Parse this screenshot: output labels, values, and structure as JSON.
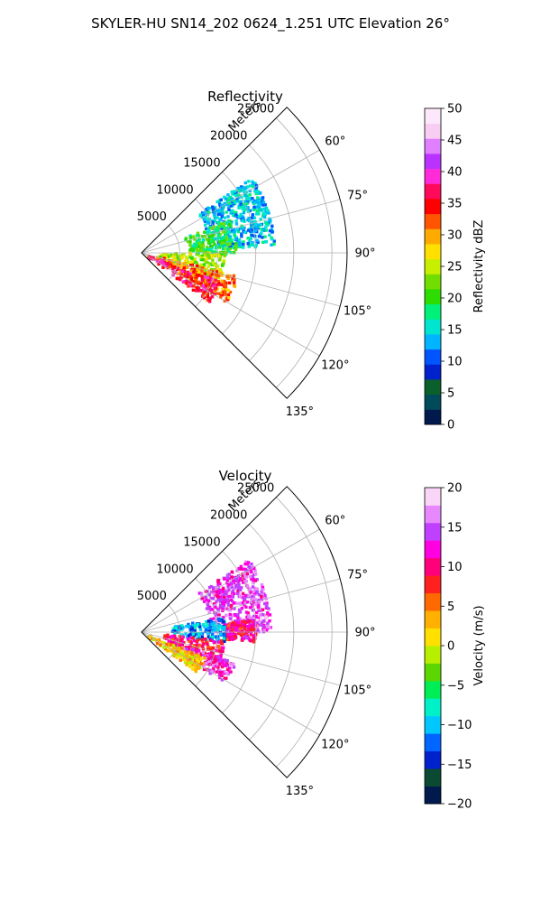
{
  "figure": {
    "suptitle": "SKYLER-HU  SN14_202  0624_1.251 UTC Elevation 26°"
  },
  "chart_data": [
    {
      "type": "heatmap",
      "subtype": "polar-sector (PPI)",
      "title": "Reflectivity",
      "radial_axis_label": "Meters",
      "radial_ticks": [
        5000,
        10000,
        15000,
        20000,
        25000
      ],
      "radial_tick_labels": [
        "5000",
        "10000",
        "15000",
        "20000",
        "25000"
      ],
      "azimuth_ticks": [
        60,
        75,
        90,
        105,
        120,
        135
      ],
      "azimuth_tick_labels": [
        "60°",
        "75°",
        "90°",
        "105°",
        "120°",
        "135°"
      ],
      "azimuth_range": [
        45,
        135
      ],
      "radial_range": [
        0,
        27000
      ],
      "grid": true,
      "colorbar": {
        "label": "Reflectivity dBZ",
        "range": [
          0,
          50
        ],
        "ticks": [
          0,
          5,
          10,
          15,
          20,
          25,
          30,
          35,
          40,
          45,
          50
        ],
        "tick_labels": [
          "0",
          "5",
          "10",
          "15",
          "20",
          "25",
          "30",
          "35",
          "40",
          "45",
          "50"
        ],
        "colormap": "pyart_NWSRef",
        "colors": [
          "#001a4d",
          "#004a5a",
          "#0a5f2a",
          "#0022cc",
          "#0055ff",
          "#00b4ff",
          "#00e5d0",
          "#00f07a",
          "#2ddc00",
          "#72dd00",
          "#c8ef00",
          "#ffe000",
          "#ffaa00",
          "#ff5500",
          "#ff0000",
          "#ff0a5a",
          "#ff2bd8",
          "#b932ff",
          "#e07fff",
          "#f7cdf4",
          "#fde8fb"
        ]
      },
      "echo_regions": [
        {
          "az_range": [
            56,
            87
          ],
          "r_range": [
            9000,
            17500
          ],
          "value": 14
        },
        {
          "az_range": [
            70,
            92
          ],
          "r_range": [
            6000,
            12500
          ],
          "value": 20
        },
        {
          "az_range": [
            90,
            110
          ],
          "r_range": [
            2500,
            11000
          ],
          "value": 24
        },
        {
          "az_range": [
            103,
            120
          ],
          "r_range": [
            1500,
            13000
          ],
          "value": 31
        },
        {
          "az_range": [
            110,
            126
          ],
          "r_range": [
            1000,
            11000
          ],
          "value": 36
        }
      ]
    },
    {
      "type": "heatmap",
      "subtype": "polar-sector (PPI)",
      "title": "Velocity",
      "radial_axis_label": "Meters",
      "radial_ticks": [
        5000,
        10000,
        15000,
        20000,
        25000
      ],
      "radial_tick_labels": [
        "5000",
        "10000",
        "15000",
        "20000",
        "25000"
      ],
      "azimuth_ticks": [
        60,
        75,
        90,
        105,
        120,
        135
      ],
      "azimuth_tick_labels": [
        "60°",
        "75°",
        "90°",
        "105°",
        "120°",
        "135°"
      ],
      "azimuth_range": [
        45,
        135
      ],
      "radial_range": [
        0,
        27000
      ],
      "grid": true,
      "colorbar": {
        "label": "Velocity (m/s)",
        "range": [
          -20,
          20
        ],
        "ticks": [
          -20,
          -15,
          -10,
          -5,
          0,
          5,
          10,
          15,
          20
        ],
        "tick_labels": [
          "−20",
          "−15",
          "−10",
          "−5",
          "0",
          "5",
          "10",
          "15",
          "20"
        ],
        "colormap": "pyart_BuDRd18-like",
        "colors": [
          "#001a4d",
          "#0b4a32",
          "#0022cc",
          "#0066ff",
          "#00c8ff",
          "#00f0c8",
          "#00ee55",
          "#5cd600",
          "#b8ef00",
          "#ffe000",
          "#ffb000",
          "#ff6a00",
          "#ff2020",
          "#ff007a",
          "#ff00e0",
          "#c040ff",
          "#e888ff",
          "#f9d6f7"
        ]
      },
      "echo_regions": [
        {
          "az_range": [
            56,
            90
          ],
          "r_range": [
            9000,
            17000
          ],
          "value": 14
        },
        {
          "az_range": [
            84,
            95
          ],
          "r_range": [
            11000,
            15000
          ],
          "value": 10
        },
        {
          "az_range": [
            80,
            97
          ],
          "r_range": [
            4000,
            11000
          ],
          "value": -11
        },
        {
          "az_range": [
            96,
            112
          ],
          "r_range": [
            2500,
            11000
          ],
          "value": 9
        },
        {
          "az_range": [
            108,
            121
          ],
          "r_range": [
            5000,
            13000
          ],
          "value": 13
        },
        {
          "az_range": [
            112,
            126
          ],
          "r_range": [
            1000,
            9000
          ],
          "value": 2
        }
      ]
    }
  ]
}
